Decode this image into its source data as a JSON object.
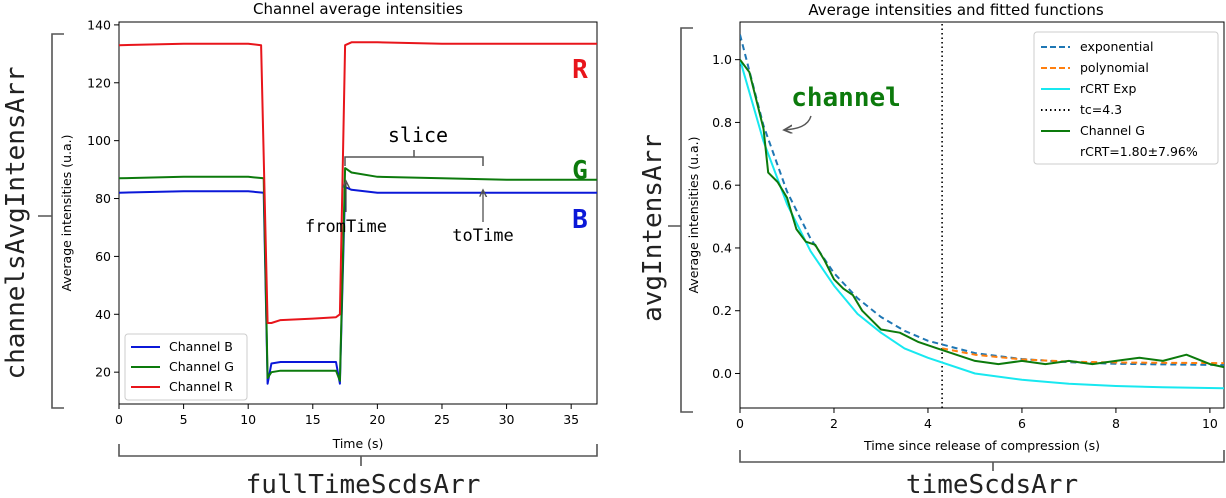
{
  "colors": {
    "channel_b": "#0b18d8",
    "channel_g": "#0c7a0c",
    "channel_r": "#e8151b",
    "exponential": "#1f77b4",
    "polynomial": "#ff7f0e",
    "rcrt_exp": "#18e8f0",
    "tc_line": "#000000",
    "bracket": "#555555"
  },
  "left": {
    "title": "Channel average intensities",
    "ylabel_bracket": "channelsAvgIntensArr",
    "xlabel_bracket": "fullTimeScdsArr",
    "channel_letters": [
      "R",
      "G",
      "B"
    ],
    "slice_label": "slice",
    "from_label": "fromTime",
    "to_label": "toTime"
  },
  "right": {
    "title": "Average intensities and fitted functions",
    "ylabel_bracket": "avgIntensArr",
    "xlabel_bracket": "timeScdsArr",
    "channel_annotation": "channel"
  },
  "chart_data": [
    {
      "type": "line",
      "title": "Channel average intensities",
      "xlabel": "Time (s)",
      "ylabel": "Average intensities (u.a.)",
      "xlim": [
        0,
        37
      ],
      "ylim": [
        9,
        141
      ],
      "xticks": [
        0,
        5,
        10,
        15,
        20,
        25,
        30,
        35
      ],
      "yticks": [
        20,
        40,
        60,
        80,
        100,
        120,
        140
      ],
      "legend_position": "lower-left",
      "grid": false,
      "series": [
        {
          "name": "Channel B",
          "color_key": "channel_b",
          "x": [
            0,
            5,
            10,
            11.2,
            11.5,
            11.8,
            12.5,
            15,
            16.8,
            17.1,
            17.5,
            18,
            20,
            25,
            30,
            37
          ],
          "y": [
            82,
            82.5,
            82.5,
            82,
            16,
            23,
            23.5,
            23.5,
            23.5,
            16,
            84,
            83,
            82,
            82,
            82,
            82
          ]
        },
        {
          "name": "Channel G",
          "color_key": "channel_g",
          "x": [
            0,
            5,
            10,
            11.2,
            11.5,
            11.8,
            12.5,
            15,
            16.8,
            17.1,
            17.5,
            18,
            20,
            25,
            30,
            37
          ],
          "y": [
            87,
            87.5,
            87.5,
            87,
            18,
            20,
            20.5,
            20.5,
            20.5,
            17,
            90.5,
            89,
            87.5,
            87,
            86.5,
            86.5
          ]
        },
        {
          "name": "Channel R",
          "color_key": "channel_r",
          "x": [
            0,
            5,
            10,
            11.0,
            11.5,
            11.8,
            12.5,
            15,
            16.8,
            17.1,
            17.5,
            18,
            20,
            25,
            30,
            37
          ],
          "y": [
            133,
            133.5,
            133.5,
            133,
            37,
            37,
            38,
            38.5,
            39,
            40,
            133,
            134,
            134,
            133.5,
            133.5,
            133.5
          ]
        }
      ],
      "annotations": [
        {
          "text": "slice",
          "x_from": 17.5,
          "x_to": 28
        },
        {
          "text": "fromTime",
          "x": 17.5
        },
        {
          "text": "toTime",
          "x": 28
        }
      ]
    },
    {
      "type": "line",
      "title": "Average intensities and fitted functions",
      "xlabel": "Time since release of compression (s)",
      "ylabel": "Average intensities (u.a.)",
      "xlim": [
        0,
        10.3
      ],
      "ylim": [
        -0.11,
        1.12
      ],
      "xticks": [
        0,
        2,
        4,
        6,
        8,
        10
      ],
      "yticks": [
        0.0,
        0.2,
        0.4,
        0.6,
        0.8,
        1.0
      ],
      "legend_position": "upper-right",
      "grid": false,
      "series": [
        {
          "name": "exponential",
          "style": "dashed",
          "color_key": "exponential",
          "x": [
            0,
            0.5,
            1,
            1.5,
            2,
            2.5,
            3,
            3.5,
            4,
            5,
            6,
            7,
            8,
            9,
            10.3
          ],
          "y": [
            1.08,
            0.79,
            0.58,
            0.43,
            0.32,
            0.24,
            0.18,
            0.136,
            0.104,
            0.065,
            0.046,
            0.036,
            0.031,
            0.029,
            0.027
          ]
        },
        {
          "name": "polynomial",
          "style": "dashed",
          "color_key": "polynomial",
          "x": [
            4.3,
            5,
            6,
            7,
            8,
            9,
            10.3
          ],
          "y": [
            0.08,
            0.06,
            0.045,
            0.038,
            0.035,
            0.034,
            0.033
          ]
        },
        {
          "name": "rCRT Exp",
          "style": "solid",
          "color_key": "rcrt_exp",
          "x": [
            0,
            0.5,
            1,
            1.5,
            2,
            2.5,
            3,
            3.5,
            4,
            5,
            6,
            7,
            8,
            9,
            10.3
          ],
          "y": [
            1.0,
            0.74,
            0.54,
            0.39,
            0.28,
            0.19,
            0.13,
            0.08,
            0.05,
            0.0,
            -0.02,
            -0.033,
            -0.04,
            -0.044,
            -0.047
          ]
        },
        {
          "name": "tc=4.3",
          "style": "dotted",
          "color_key": "tc_line",
          "x": [
            4.3,
            4.3
          ],
          "y": [
            -0.11,
            1.12
          ]
        },
        {
          "name": "Channel G",
          "style": "solid",
          "color_key": "channel_g",
          "x": [
            0,
            0.2,
            0.4,
            0.5,
            0.6,
            0.8,
            1.0,
            1.2,
            1.4,
            1.6,
            1.8,
            2.0,
            2.2,
            2.4,
            2.6,
            2.8,
            3.0,
            3.4,
            3.8,
            4.2,
            4.6,
            5.0,
            5.5,
            6.0,
            6.5,
            7.0,
            7.5,
            8.0,
            8.5,
            9.0,
            9.5,
            10.0,
            10.3
          ],
          "y": [
            1.0,
            0.96,
            0.84,
            0.78,
            0.64,
            0.61,
            0.56,
            0.46,
            0.42,
            0.41,
            0.36,
            0.3,
            0.27,
            0.25,
            0.2,
            0.17,
            0.14,
            0.13,
            0.1,
            0.08,
            0.06,
            0.04,
            0.03,
            0.04,
            0.03,
            0.04,
            0.03,
            0.04,
            0.05,
            0.04,
            0.06,
            0.03,
            0.02
          ]
        },
        {
          "name": "rCRT=1.80±7.96%",
          "style": "none"
        }
      ],
      "annotations": [
        {
          "text": "channel"
        }
      ]
    }
  ]
}
